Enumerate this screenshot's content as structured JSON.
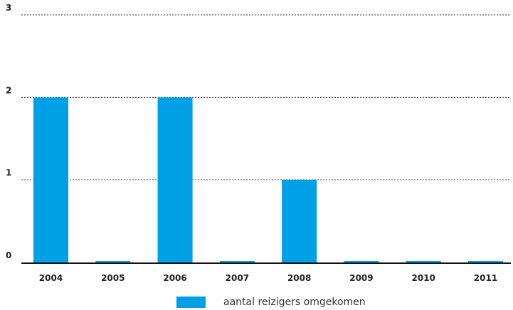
{
  "chart_data": {
    "type": "bar",
    "categories": [
      "2004",
      "2005",
      "2006",
      "2007",
      "2008",
      "2009",
      "2010",
      "2011"
    ],
    "series": [
      {
        "name": "aantal reizigers omgekomen",
        "values": [
          2,
          0,
          2,
          0,
          1,
          0,
          0,
          0
        ],
        "color": "#00a0e6"
      }
    ],
    "yticks": [
      "0",
      "1",
      "2",
      "3"
    ],
    "ylim": [
      0,
      3
    ],
    "grid": true,
    "legend_position": "bottom"
  }
}
